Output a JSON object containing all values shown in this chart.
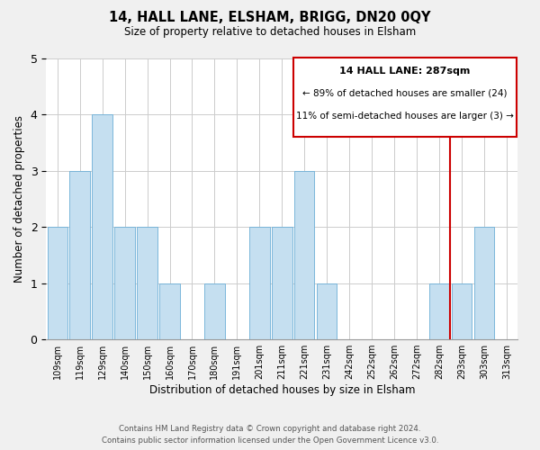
{
  "title": "14, HALL LANE, ELSHAM, BRIGG, DN20 0QY",
  "subtitle": "Size of property relative to detached houses in Elsham",
  "xlabel": "Distribution of detached houses by size in Elsham",
  "ylabel": "Number of detached properties",
  "categories": [
    "109sqm",
    "119sqm",
    "129sqm",
    "140sqm",
    "150sqm",
    "160sqm",
    "170sqm",
    "180sqm",
    "191sqm",
    "201sqm",
    "211sqm",
    "221sqm",
    "231sqm",
    "242sqm",
    "252sqm",
    "262sqm",
    "272sqm",
    "282sqm",
    "293sqm",
    "303sqm",
    "313sqm"
  ],
  "values": [
    2,
    3,
    4,
    2,
    2,
    1,
    0,
    1,
    0,
    2,
    2,
    3,
    1,
    0,
    0,
    0,
    0,
    1,
    1,
    2,
    0
  ],
  "bar_color": "#c5dff0",
  "bar_edge_color": "#6baed6",
  "property_line_index": 18,
  "property_line_color": "#cc0000",
  "annotation_title": "14 HALL LANE: 287sqm",
  "annotation_line1": "← 89% of detached houses are smaller (24)",
  "annotation_line2": "11% of semi-detached houses are larger (3) →",
  "annotation_box_color": "#cc0000",
  "ylim": [
    0,
    5
  ],
  "yticks": [
    0,
    1,
    2,
    3,
    4,
    5
  ],
  "footer1": "Contains HM Land Registry data © Crown copyright and database right 2024.",
  "footer2": "Contains public sector information licensed under the Open Government Licence v3.0.",
  "bg_color": "#f0f0f0",
  "plot_bg_color": "#ffffff"
}
